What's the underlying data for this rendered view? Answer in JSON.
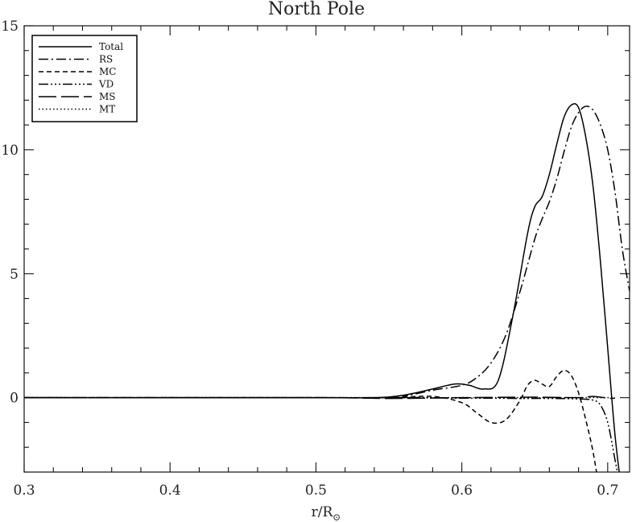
{
  "chart_data": {
    "type": "line",
    "title": "North Pole",
    "xlabel": "r/R",
    "xlabel_subscript": "⊙",
    "ylabel": "",
    "xlim": [
      0.3,
      0.715
    ],
    "ylim": [
      -3,
      15
    ],
    "x_ticks": [
      {
        "value": 0.3,
        "label": "0.3"
      },
      {
        "value": 0.4,
        "label": "0.4"
      },
      {
        "value": 0.5,
        "label": "0.5"
      },
      {
        "value": 0.6,
        "label": "0.6"
      },
      {
        "value": 0.7,
        "label": "0.7"
      }
    ],
    "y_ticks": [
      {
        "value": 0,
        "label": "0"
      },
      {
        "value": 5,
        "label": "5"
      },
      {
        "value": 10,
        "label": "10"
      },
      {
        "value": 15,
        "label": "15"
      }
    ],
    "legend_position": "top-left",
    "series": [
      {
        "name": "Total",
        "dash": "",
        "x": [
          0.3,
          0.5,
          0.54,
          0.56,
          0.58,
          0.595,
          0.605,
          0.615,
          0.625,
          0.635,
          0.645,
          0.65,
          0.655,
          0.66,
          0.665,
          0.67,
          0.675,
          0.68,
          0.685,
          0.69,
          0.695,
          0.7,
          0.705,
          0.71
        ],
        "y": [
          0,
          0,
          0,
          0.1,
          0.35,
          0.55,
          0.5,
          0.35,
          0.7,
          3.3,
          6.6,
          7.7,
          8.1,
          9.0,
          10.2,
          11.3,
          11.8,
          11.7,
          10.5,
          8.5,
          5.5,
          2.0,
          -1.5,
          -4.0
        ]
      },
      {
        "name": "RS",
        "dash": "12 4 2 4",
        "x": [
          0.3,
          0.55,
          0.56,
          0.58,
          0.6,
          0.61,
          0.62,
          0.63,
          0.64,
          0.65,
          0.655,
          0.66,
          0.665,
          0.67,
          0.675,
          0.68,
          0.685,
          0.69,
          0.695,
          0.7,
          0.705,
          0.71,
          0.715
        ],
        "y": [
          0,
          0,
          0.05,
          0.3,
          0.5,
          0.8,
          1.4,
          2.5,
          4.3,
          6.4,
          7.2,
          7.9,
          8.8,
          9.9,
          10.9,
          11.5,
          11.75,
          11.6,
          11.0,
          10.0,
          8.3,
          6.0,
          4.3
        ]
      },
      {
        "name": "MC",
        "dash": "6 4",
        "x": [
          0.3,
          0.5,
          0.55,
          0.58,
          0.6,
          0.61,
          0.62,
          0.63,
          0.64,
          0.645,
          0.65,
          0.655,
          0.66,
          0.665,
          0.67,
          0.675,
          0.68,
          0.685,
          0.69,
          0.695
        ],
        "y": [
          0,
          0,
          0,
          0.05,
          -0.2,
          -0.6,
          -1.0,
          -0.9,
          -0.1,
          0.5,
          0.7,
          0.55,
          0.45,
          0.85,
          1.1,
          0.9,
          0.2,
          -0.9,
          -2.2,
          -4.0
        ]
      },
      {
        "name": "VD",
        "dash": "12 3 2 3 2 3 2 3",
        "x": [
          0.3,
          0.55,
          0.6,
          0.62,
          0.64,
          0.66,
          0.68,
          0.69,
          0.695,
          0.7,
          0.705,
          0.71
        ],
        "y": [
          0,
          0,
          -0.02,
          -0.02,
          -0.03,
          -0.03,
          -0.05,
          -0.1,
          -0.3,
          -1.0,
          -2.5,
          -4.0
        ]
      },
      {
        "name": "MS",
        "dash": "22 6",
        "x": [
          0.3,
          0.5,
          0.55,
          0.6,
          0.65,
          0.68,
          0.69,
          0.7,
          0.705
        ],
        "y": [
          0,
          0,
          -0.03,
          0,
          0.02,
          0,
          0.05,
          -0.02,
          -0.02
        ]
      },
      {
        "name": "MT",
        "dash": "1.5 3",
        "x": [
          0.3,
          0.5,
          0.55,
          0.6,
          0.65,
          0.68,
          0.7,
          0.705
        ],
        "y": [
          0,
          0,
          0,
          0,
          0,
          0,
          0,
          0
        ]
      }
    ]
  }
}
